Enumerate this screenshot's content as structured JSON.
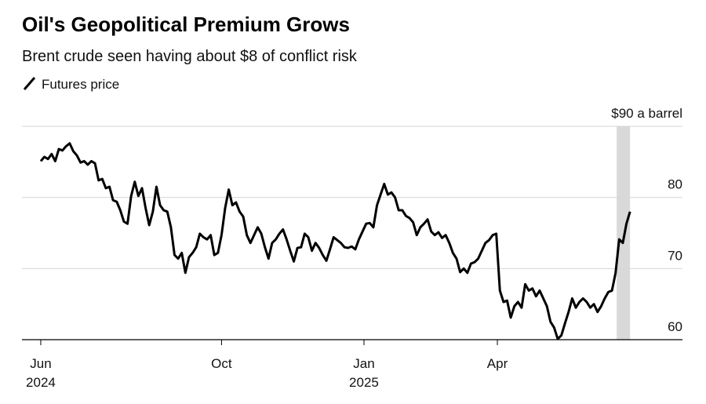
{
  "chart_data": {
    "type": "line",
    "title": "Oil's Geopolitical Premium Grows",
    "subtitle": "Brent crude seen having about $8 of conflict risk",
    "series": [
      {
        "name": "Futures price",
        "color": "#000000",
        "values": [
          85.1,
          85.7,
          85.4,
          86.1,
          85.1,
          86.8,
          86.6,
          87.2,
          87.6,
          86.5,
          85.9,
          84.9,
          85.1,
          84.6,
          85.1,
          84.8,
          82.4,
          82.6,
          81.3,
          81.5,
          79.6,
          79.4,
          78.2,
          76.6,
          76.3,
          80.2,
          82.2,
          80.2,
          81.3,
          78.5,
          76.1,
          78.0,
          81.5,
          78.9,
          78.2,
          78.0,
          75.8,
          71.9,
          71.4,
          72.2,
          69.4,
          71.6,
          72.2,
          73.0,
          74.9,
          74.4,
          74.1,
          74.7,
          71.9,
          72.2,
          74.7,
          78.5,
          81.1,
          78.9,
          79.3,
          78.0,
          77.3,
          74.7,
          73.6,
          74.7,
          75.8,
          74.9,
          73.0,
          71.4,
          73.6,
          74.1,
          74.9,
          75.5,
          74.1,
          72.5,
          71.0,
          72.9,
          73.0,
          74.9,
          74.4,
          72.5,
          73.6,
          72.9,
          71.9,
          71.1,
          72.7,
          74.4,
          74.0,
          73.6,
          73.0,
          72.9,
          73.1,
          72.7,
          74.1,
          75.2,
          76.3,
          76.4,
          75.8,
          78.9,
          80.4,
          81.9,
          80.4,
          80.7,
          80.0,
          78.2,
          78.2,
          77.4,
          77.1,
          76.5,
          74.7,
          75.8,
          76.3,
          76.9,
          75.2,
          74.7,
          75.1,
          74.3,
          74.7,
          73.6,
          72.2,
          71.4,
          69.5,
          70.0,
          69.4,
          70.7,
          70.9,
          71.4,
          72.5,
          73.6,
          74.0,
          74.7,
          74.9,
          66.9,
          65.3,
          65.5,
          63.1,
          64.7,
          65.3,
          64.5,
          67.8,
          66.9,
          67.2,
          66.1,
          66.9,
          65.8,
          64.7,
          62.5,
          61.7,
          60.1,
          60.6,
          62.3,
          63.9,
          65.8,
          64.5,
          65.3,
          65.8,
          65.3,
          64.5,
          65.0,
          63.9,
          64.7,
          65.8,
          66.7,
          66.9,
          69.4,
          74.1,
          73.6,
          76.3,
          78.0
        ]
      }
    ],
    "xlim": [
      -5.2,
      177.5
    ],
    "xticks": [
      {
        "value": 0,
        "label": "Jun\n2024"
      },
      {
        "value": 50,
        "label": "Oct"
      },
      {
        "value": 89.4,
        "label": "Jan\n2025"
      },
      {
        "value": 126.3,
        "label": "Apr"
      }
    ],
    "ylim": [
      60,
      90
    ],
    "yticks": [
      60,
      70,
      80,
      {
        "value": 90,
        "label": "$90 a barrel"
      }
    ],
    "highlight_range": [
      159.3,
      163
    ],
    "highlight_color": "#d9d9d9",
    "grid": true
  }
}
